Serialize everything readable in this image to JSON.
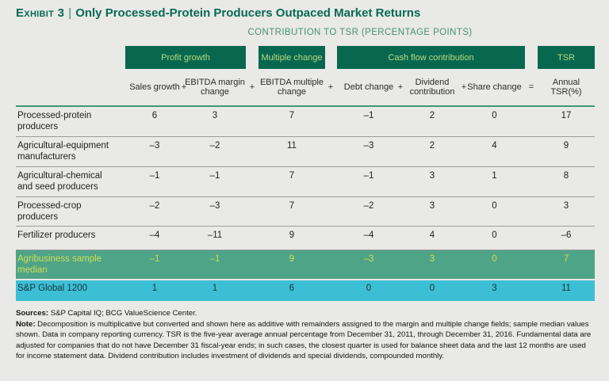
{
  "title": {
    "exhibit_label": "Exhibit 3",
    "divider": "|",
    "headline": "Only Processed-Protein Producers Outpaced Market Returns"
  },
  "subtitle": "CONTRIBUTION TO TSR (PERCENTAGE POINTS)",
  "chart_data": {
    "type": "table",
    "title": "Contribution to TSR (percentage points)",
    "column_groups": [
      {
        "label": "Profit growth",
        "columns": [
          "Sales growth",
          "EBITDA margin change"
        ]
      },
      {
        "label": "Multiple change",
        "columns": [
          "EBITDA multiple change"
        ]
      },
      {
        "label": "Cash flow contribution",
        "columns": [
          "Debt change",
          "Dividend contribution",
          "Share change"
        ]
      },
      {
        "label": "TSR",
        "columns": [
          "Annual TSR(%)"
        ]
      }
    ],
    "columns": [
      "Sales growth",
      "EBITDA margin change",
      "EBITDA multiple change",
      "Debt change",
      "Dividend contribution",
      "Share change",
      "Annual TSR(%)"
    ],
    "separators": [
      "+",
      "+",
      "+",
      "+",
      "+",
      "="
    ],
    "rows": [
      {
        "label": "Processed-protein producers",
        "style": "default",
        "values": [
          "6",
          "3",
          "7",
          "–1",
          "2",
          "0",
          "17"
        ]
      },
      {
        "label": "Agricultural-equipment manufacturers",
        "style": "default",
        "values": [
          "–3",
          "–2",
          "11",
          "–3",
          "2",
          "4",
          "9"
        ]
      },
      {
        "label": "Agricultural-chemical and seed producers",
        "style": "default",
        "values": [
          "–1",
          "–1",
          "7",
          "–1",
          "3",
          "1",
          "8"
        ]
      },
      {
        "label": "Processed-crop producers",
        "style": "default",
        "values": [
          "–2",
          "–3",
          "7",
          "–2",
          "3",
          "0",
          "3"
        ]
      },
      {
        "label": "Fertilizer producers",
        "style": "default",
        "values": [
          "–4",
          "–11",
          "9",
          "–4",
          "4",
          "0",
          "–6"
        ]
      },
      {
        "label": "Agribusiness sample median",
        "style": "median",
        "values": [
          "–1",
          "–1",
          "9",
          "–3",
          "3",
          "0",
          "7"
        ]
      },
      {
        "label": "S&P Global 1200",
        "style": "benchmark",
        "values": [
          "1",
          "1",
          "6",
          "0",
          "0",
          "3",
          "11"
        ]
      }
    ]
  },
  "footer": {
    "sources_label": "Sources:",
    "sources_text": " S&P Capital IQ; BCG ValueScience Center.",
    "note_label": "Note:",
    "note_text": " Decomposition is multiplicative but converted and shown here as additive with remainders assigned to the margin and multiple change fields; sample median values shown. Data in company reporting currency. TSR is the five-year average annual percentage from December 31, 2011, through December 31, 2016. Fundamental data are adjusted for companies that do not have December 31 fiscal-year ends; in such cases, the closest quarter is used for balance sheet data and the last 12 months are used for income statement data. Dividend contribution includes investment of dividends and special dividends, compounded monthly."
  },
  "colors": {
    "page_bg": "#E9E9E7",
    "brand_green_dark": "#08684F",
    "title_green": "#076A52",
    "subtitle_teal": "#45917A",
    "group_box_text": "#B7D97E",
    "header_rule_teal": "#3E9878",
    "row_rule_gray": "#9C9C9C",
    "median_row_bg": "#4FA487",
    "median_row_text": "#CBDE58",
    "benchmark_row_bg": "#3CBFD5",
    "benchmark_row_text": "#17333E"
  }
}
